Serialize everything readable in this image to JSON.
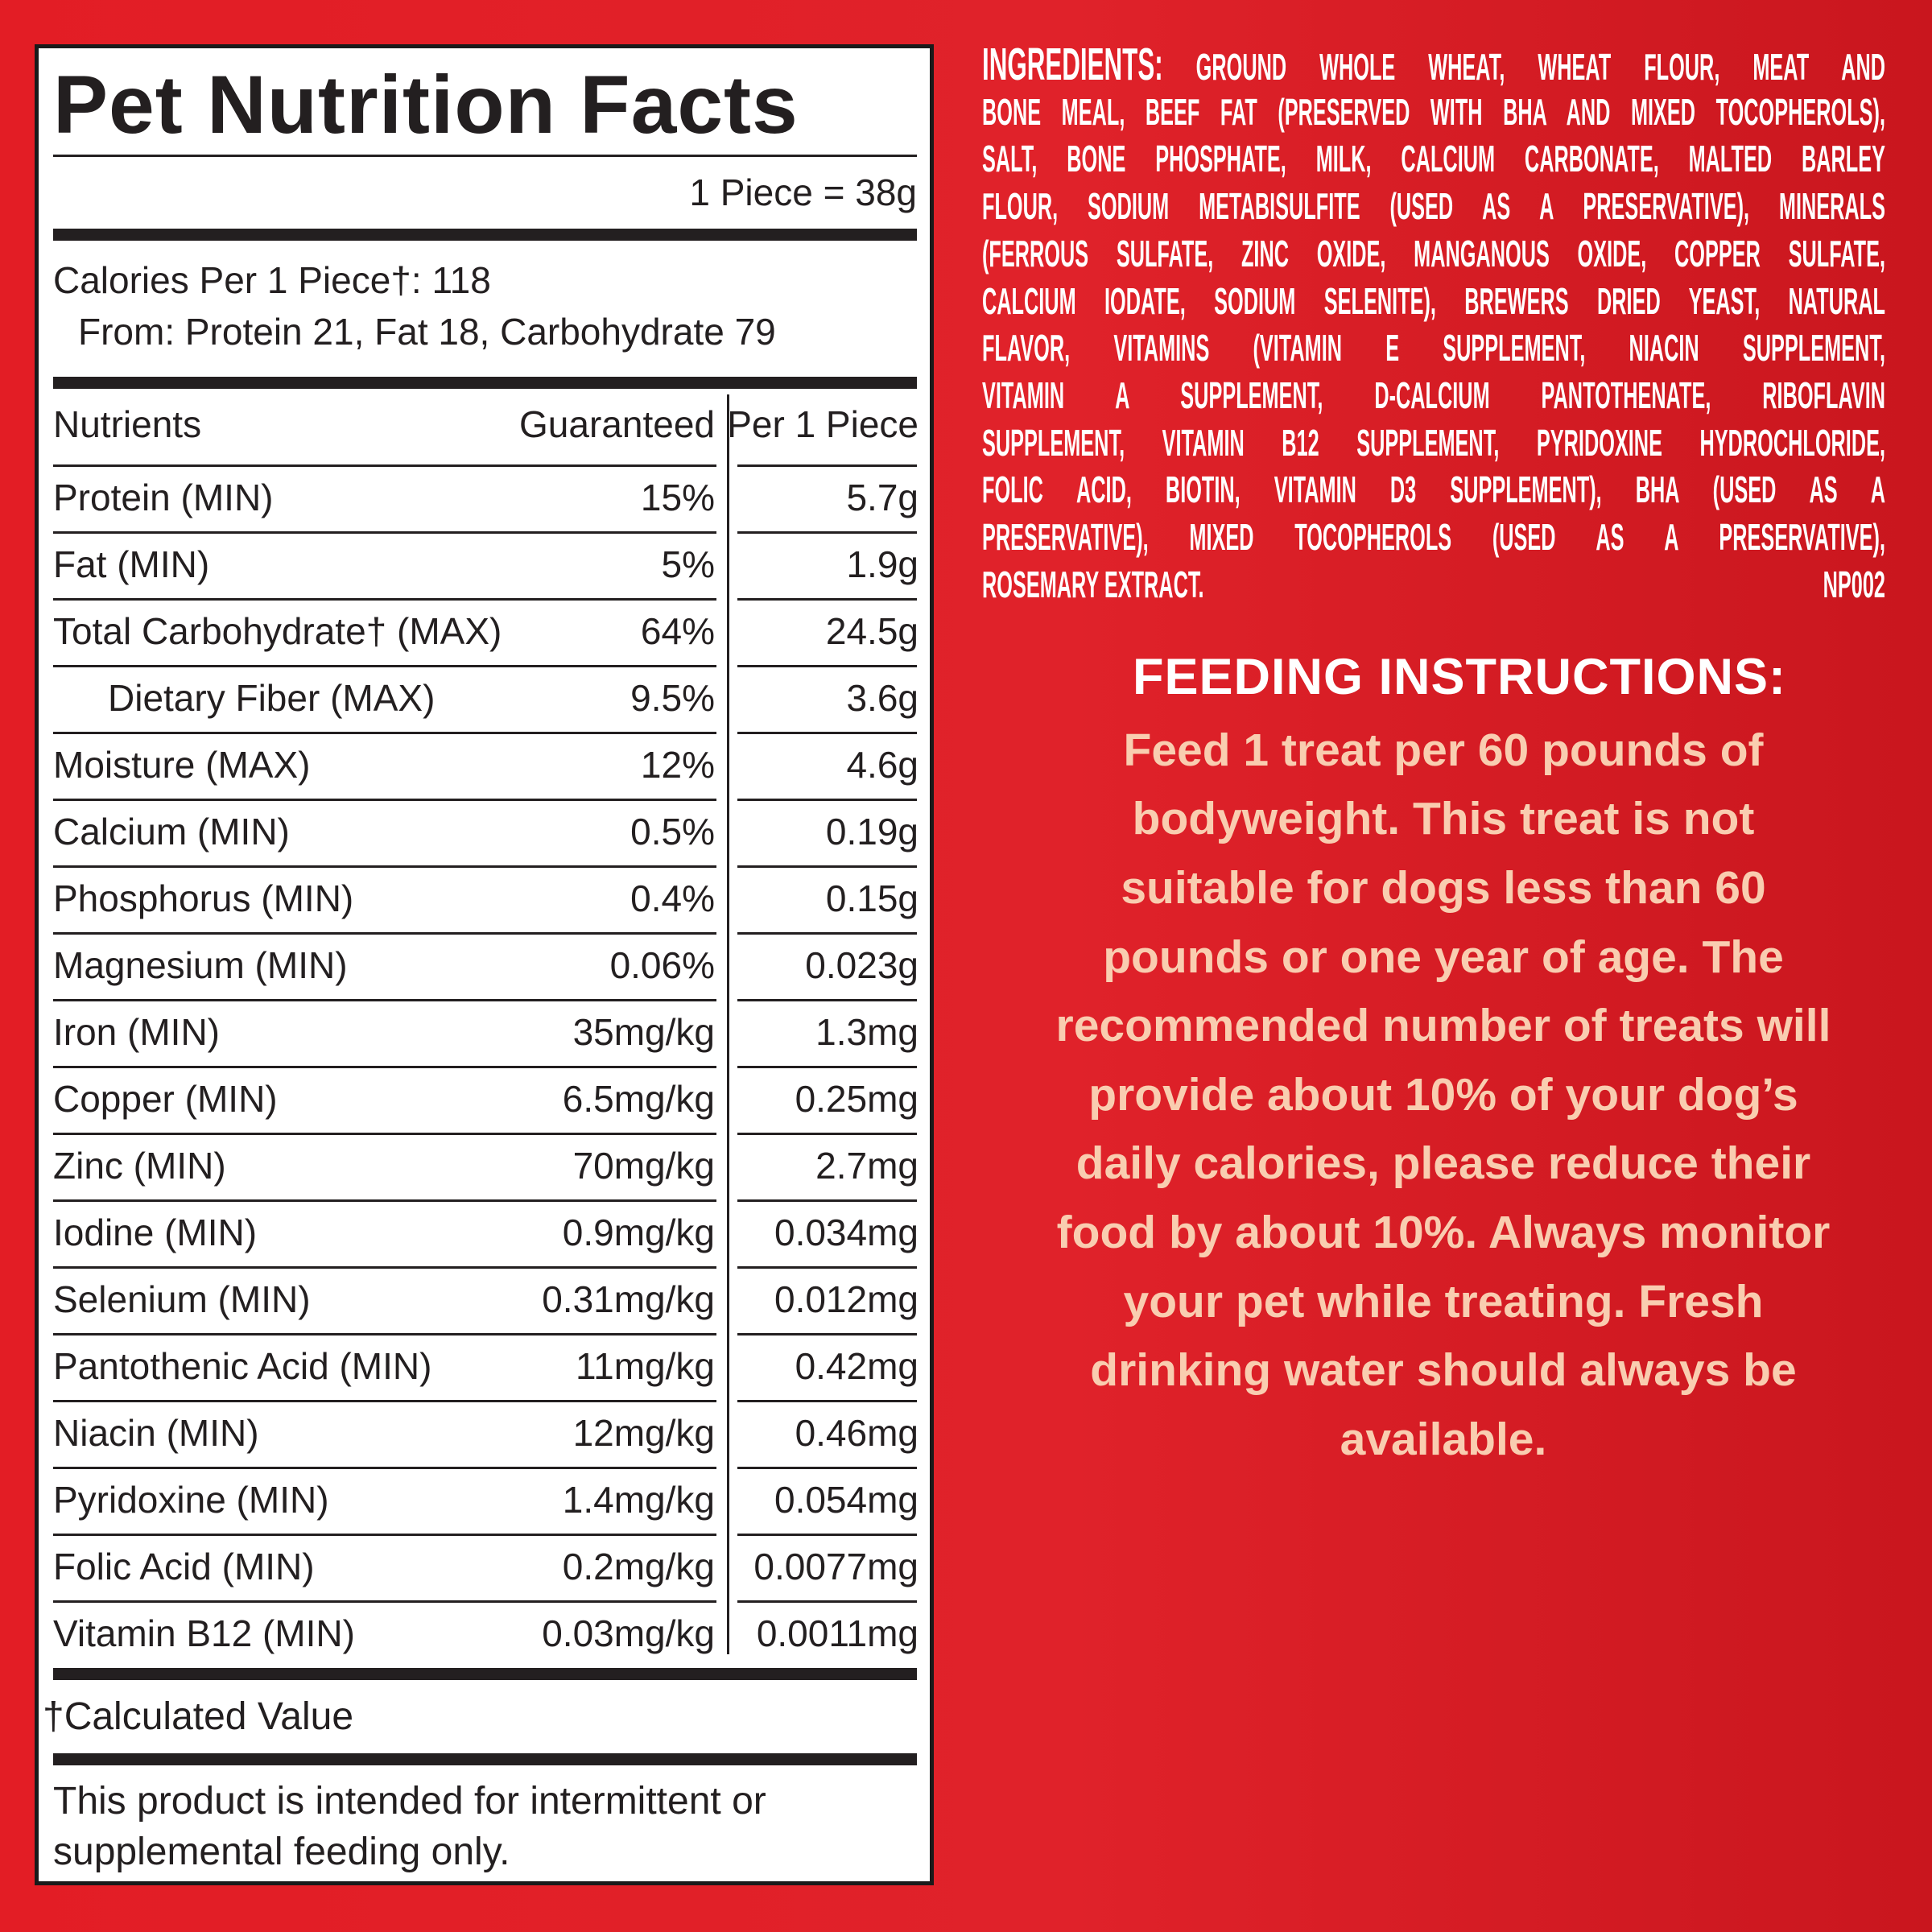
{
  "nutrition": {
    "title": "Pet Nutrition Facts",
    "serving": "1 Piece = 38g",
    "calories": "Calories Per 1 Piece†: 118",
    "calories_from": "From: Protein 21, Fat 18, Carbohydrate 79",
    "columns": [
      "Nutrients",
      "Guaranteed",
      "Per 1 Piece"
    ],
    "rows": [
      [
        "Protein (MIN)",
        "15%",
        "5.7g"
      ],
      [
        "Fat (MIN)",
        "5%",
        "1.9g"
      ],
      [
        "Total Carbohydrate† (MAX)",
        "64%",
        "24.5g"
      ],
      [
        "Dietary Fiber (MAX)",
        "9.5%",
        "3.6g"
      ],
      [
        "Moisture (MAX)",
        "12%",
        "4.6g"
      ],
      [
        "Calcium (MIN)",
        "0.5%",
        "0.19g"
      ],
      [
        "Phosphorus (MIN)",
        "0.4%",
        "0.15g"
      ],
      [
        "Magnesium (MIN)",
        "0.06%",
        "0.023g"
      ],
      [
        "Iron (MIN)",
        "35mg/kg",
        "1.3mg"
      ],
      [
        "Copper (MIN)",
        "6.5mg/kg",
        "0.25mg"
      ],
      [
        "Zinc (MIN)",
        "70mg/kg",
        "2.7mg"
      ],
      [
        "Iodine (MIN)",
        "0.9mg/kg",
        "0.034mg"
      ],
      [
        "Selenium (MIN)",
        "0.31mg/kg",
        "0.012mg"
      ],
      [
        "Pantothenic Acid (MIN)",
        "11mg/kg",
        "0.42mg"
      ],
      [
        "Niacin (MIN)",
        "12mg/kg",
        "0.46mg"
      ],
      [
        "Pyridoxine (MIN)",
        "1.4mg/kg",
        "0.054mg"
      ],
      [
        "Folic Acid (MIN)",
        "0.2mg/kg",
        "0.0077mg"
      ],
      [
        "Vitamin B12 (MIN)",
        "0.03mg/kg",
        "0.0011mg"
      ]
    ],
    "footnote": "†Calculated Value",
    "disclaimer": [
      "This product is intended for intermittent or",
      "supplemental feeding only."
    ]
  },
  "ingredients": {
    "label": "INGREDIENTS:",
    "lines": [
      "GROUND WHOLE WHEAT, WHEAT FLOUR, MEAT AND",
      "BONE MEAL, BEEF FAT (PRESERVED WITH BHA AND MIXED TOCOPHEROLS),",
      "SALT, BONE PHOSPHATE, MILK, CALCIUM CARBONATE, MALTED BARLEY",
      "FLOUR, SODIUM METABISULFITE (USED AS A PRESERVATIVE), MINERALS",
      "(FERROUS SULFATE, ZINC OXIDE, MANGANOUS OXIDE, COPPER SULFATE,",
      "CALCIUM IODATE, SODIUM SELENITE), BREWERS DRIED YEAST, NATURAL",
      "FLAVOR, VITAMINS (VITAMIN E SUPPLEMENT, NIACIN SUPPLEMENT,",
      "VITAMIN A SUPPLEMENT, D-CALCIUM PANTOTHENATE, RIBOFLAVIN",
      "SUPPLEMENT, VITAMIN B12 SUPPLEMENT, PYRIDOXINE HYDROCHLORIDE,",
      "FOLIC ACID, BIOTIN, VITAMIN D3 SUPPLEMENT), BHA (USED AS A",
      "PRESERVATIVE), MIXED TOCOPHEROLS (USED AS A PRESERVATIVE),",
      "ROSEMARY EXTRACT."
    ],
    "code": "NP002"
  },
  "feeding": {
    "title": "FEEDING INSTRUCTIONS:",
    "lines": [
      "Feed 1 treat per 60 pounds of",
      "bodyweight. This treat is not",
      "suitable for dogs less than 60",
      "pounds or one year of age. The",
      "recommended number of treats will",
      "provide about 10% of your dog’s",
      "daily calories, please reduce their",
      "food by about 10%. Always monitor",
      "your pet while treating. Fresh",
      "drinking water should always be",
      "available."
    ]
  }
}
